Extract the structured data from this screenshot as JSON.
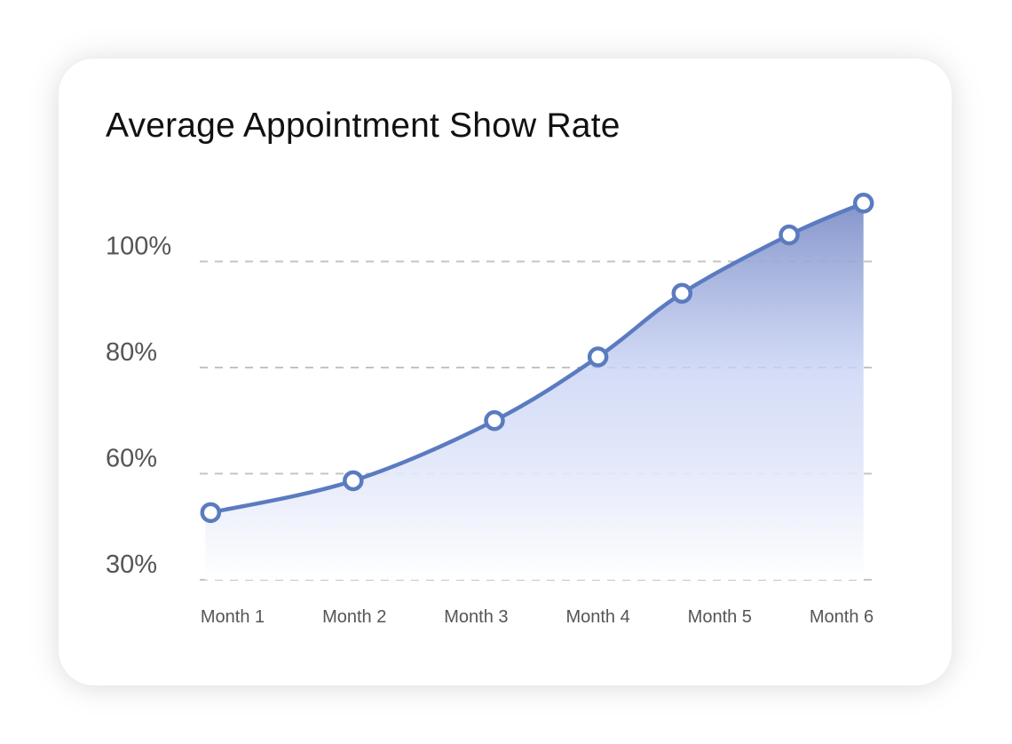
{
  "chart_data": {
    "type": "area",
    "title": "Average Appointment Show Rate",
    "xlabel": "",
    "ylabel": "",
    "categories": [
      "Month 1",
      "Month 2",
      "Month 3",
      "Month 4",
      "Month 5",
      "Month 6"
    ],
    "y_ticks": [
      "30%",
      "60%",
      "80%",
      "100%"
    ],
    "y_tick_values": [
      30,
      60,
      80,
      100
    ],
    "grid": true,
    "series": [
      {
        "name": "Show Rate",
        "x": [
          0.82,
          1.99,
          3.15,
          4.0,
          4.69,
          5.57,
          6.18
        ],
        "values": [
          49,
          58,
          70,
          82,
          94,
          105,
          111
        ]
      }
    ],
    "colors": {
      "line": "#5b7bc0",
      "fill_top": "#7e90c8",
      "fill_bottom": "#ffffff",
      "grid": "#c4c4c4"
    }
  }
}
